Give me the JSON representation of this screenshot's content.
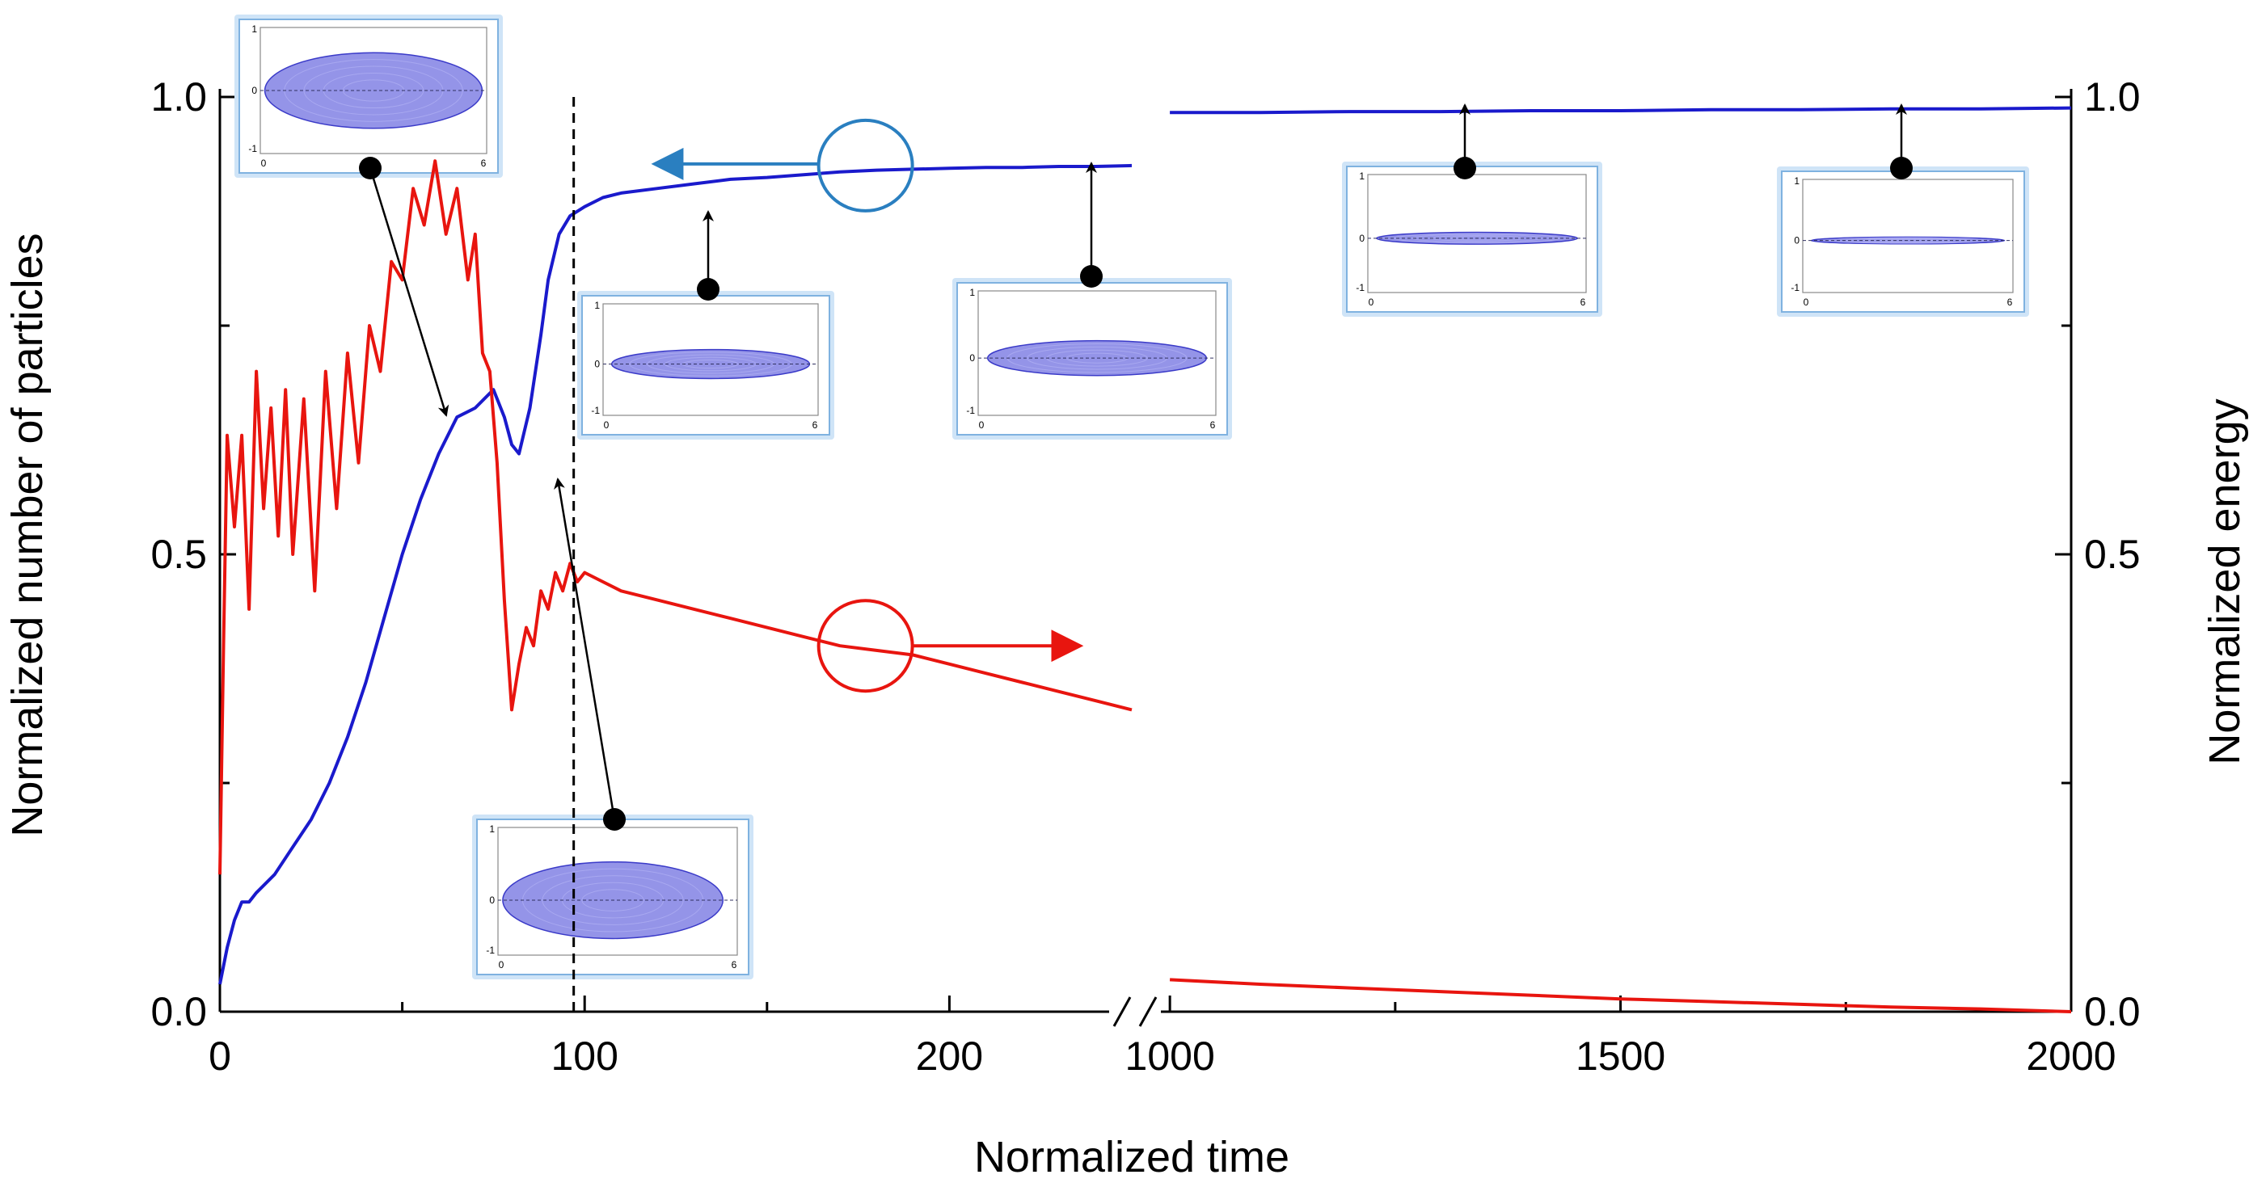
{
  "chart_data": {
    "type": "line",
    "xlabel": "Normalized time",
    "ylabel_left": "Normalized number of particles",
    "ylabel_right": "Normalized energy",
    "ylim": [
      0,
      1
    ],
    "x_axis_broken": true,
    "x_segments": [
      {
        "xlim": [
          0,
          250
        ],
        "tick_labels": [
          "0",
          "100",
          "200"
        ],
        "tick_values": [
          0,
          100,
          200
        ]
      },
      {
        "xlim": [
          990,
          2000
        ],
        "tick_labels": [
          "1000",
          "1500",
          "2000"
        ],
        "tick_values": [
          1000,
          1500,
          2000
        ]
      }
    ],
    "y_tick_labels": [
      "0.0",
      "0.5",
      "1.0"
    ],
    "y_tick_values": [
      0,
      0.5,
      1.0
    ],
    "colors": {
      "particles": "#1a1acc",
      "energy": "#e8150f",
      "marker_circle_blue": "#2a7fc0",
      "marker_circle_red": "#e8150f"
    },
    "series": [
      {
        "key": "particles",
        "axis": "left",
        "segment1": {
          "x": [
            0,
            2,
            4,
            6,
            8,
            10,
            15,
            20,
            25,
            30,
            35,
            40,
            45,
            50,
            55,
            60,
            65,
            70,
            75,
            78,
            80,
            82,
            85,
            88,
            90,
            93,
            96,
            100,
            105,
            110,
            120,
            130,
            140,
            150,
            160,
            170,
            180,
            190,
            200,
            210,
            220,
            230,
            240,
            250
          ],
          "y": [
            0.03,
            0.07,
            0.1,
            0.12,
            0.12,
            0.13,
            0.15,
            0.18,
            0.21,
            0.25,
            0.3,
            0.36,
            0.43,
            0.5,
            0.56,
            0.61,
            0.65,
            0.66,
            0.68,
            0.65,
            0.62,
            0.61,
            0.66,
            0.74,
            0.8,
            0.85,
            0.87,
            0.88,
            0.89,
            0.895,
            0.9,
            0.905,
            0.91,
            0.912,
            0.915,
            0.918,
            0.92,
            0.921,
            0.922,
            0.923,
            0.923,
            0.924,
            0.924,
            0.925
          ]
        },
        "segment2": {
          "x": [
            1000,
            1100,
            1200,
            1300,
            1400,
            1500,
            1600,
            1700,
            1800,
            1900,
            2000
          ],
          "y": [
            0.983,
            0.983,
            0.984,
            0.984,
            0.985,
            0.985,
            0.986,
            0.986,
            0.987,
            0.987,
            0.988
          ]
        }
      },
      {
        "key": "energy",
        "axis": "right",
        "segment1": {
          "x": [
            0,
            1,
            2,
            4,
            6,
            8,
            10,
            12,
            14,
            16,
            18,
            20,
            23,
            26,
            29,
            32,
            35,
            38,
            41,
            44,
            47,
            50,
            53,
            56,
            59,
            62,
            65,
            68,
            70,
            72,
            74,
            76,
            78,
            80,
            82,
            84,
            86,
            88,
            90,
            92,
            94,
            96,
            98,
            100,
            105,
            110,
            120,
            130,
            140,
            150,
            160,
            170,
            180,
            190,
            200,
            210,
            220,
            230,
            240,
            250
          ],
          "y": [
            0.15,
            0.4,
            0.63,
            0.53,
            0.63,
            0.44,
            0.7,
            0.55,
            0.66,
            0.52,
            0.68,
            0.5,
            0.67,
            0.46,
            0.7,
            0.55,
            0.72,
            0.6,
            0.75,
            0.7,
            0.82,
            0.8,
            0.9,
            0.86,
            0.93,
            0.85,
            0.9,
            0.8,
            0.85,
            0.72,
            0.7,
            0.6,
            0.45,
            0.33,
            0.38,
            0.42,
            0.4,
            0.46,
            0.44,
            0.48,
            0.46,
            0.49,
            0.47,
            0.48,
            0.47,
            0.46,
            0.45,
            0.44,
            0.43,
            0.42,
            0.41,
            0.4,
            0.395,
            0.39,
            0.38,
            0.37,
            0.36,
            0.35,
            0.34,
            0.33
          ]
        },
        "segment2": {
          "x": [
            1000,
            1100,
            1200,
            1300,
            1400,
            1500,
            1600,
            1700,
            1800,
            1900,
            2000
          ],
          "y": [
            0.035,
            0.03,
            0.026,
            0.022,
            0.018,
            0.014,
            0.011,
            0.008,
            0.005,
            0.003,
            0.0
          ]
        }
      }
    ],
    "annotations": {
      "vertical_dashed_line_x": 97,
      "blue_circle": {
        "x": 177,
        "y": 0.925,
        "arrow_to_x": 120
      },
      "red_circle": {
        "x": 177,
        "y": 0.4,
        "arrow_to_x": 235
      },
      "insets": [
        {
          "name": "inset-1",
          "point": [
            42,
            0.92
          ],
          "arrow_to": [
            63,
            0.65
          ],
          "tick_left": [
            "1",
            "0",
            "-1"
          ],
          "tick_bottom": [
            "0",
            "6"
          ],
          "shape": "eye"
        },
        {
          "name": "inset-2",
          "point": [
            109,
            0.21
          ],
          "arrow_to": [
            93,
            0.6
          ],
          "tick_left": [
            "1",
            "0",
            "-1"
          ],
          "tick_bottom": [
            "0",
            "6"
          ],
          "shape": "eye-tail"
        },
        {
          "name": "inset-3",
          "point": [
            135,
            0.79
          ],
          "arrow_to": [
            135,
            0.875
          ],
          "tick_left": [
            "1",
            "0",
            "-1"
          ],
          "tick_bottom": [
            "0",
            "6"
          ],
          "shape": "flat-bulge"
        },
        {
          "name": "inset-4",
          "point": [
            239,
            0.8
          ],
          "arrow_to": [
            239,
            0.92
          ],
          "tick_left": [
            "1",
            "0",
            "-1"
          ],
          "tick_bottom": [
            "0",
            "6"
          ],
          "shape": "flat-wide"
        },
        {
          "name": "inset-5",
          "point": [
            1420,
            0.925
          ],
          "arrow_to": [
            1420,
            0.985
          ],
          "tick_left": [
            "1",
            "0",
            "-1"
          ],
          "tick_bottom": [
            "0",
            "6"
          ],
          "shape": "thin"
        },
        {
          "name": "inset-6",
          "point": [
            1900,
            0.925
          ],
          "arrow_to": [
            1900,
            0.987
          ],
          "tick_left": [
            "1",
            "0",
            "-1"
          ],
          "tick_bottom": [
            "0",
            "6"
          ],
          "shape": "thinnest"
        }
      ]
    }
  }
}
